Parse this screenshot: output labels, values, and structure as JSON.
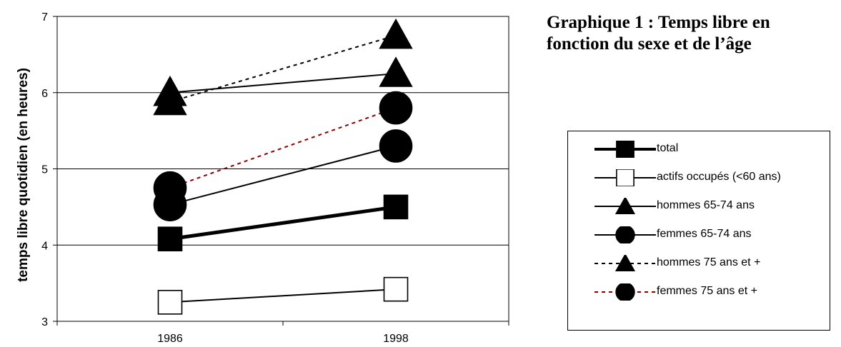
{
  "chart_data": {
    "type": "line",
    "title": "Graphique 1 : Temps libre en fonction du sexe et de l’âge",
    "xlabel": "",
    "ylabel": "temps libre quotidien (en heures)",
    "categories": [
      "1986",
      "1998"
    ],
    "ylim": [
      3,
      7
    ],
    "yticks": [
      "3",
      "4",
      "5",
      "6",
      "7"
    ],
    "grid": "horizontal",
    "legend_position": "right",
    "series": [
      {
        "name": "total",
        "values": [
          4.08,
          4.5
        ],
        "marker": "square-filled",
        "line": "solid-thick",
        "color": "#000000"
      },
      {
        "name": "actifs occupés (<60 ans)",
        "values": [
          3.25,
          3.42
        ],
        "marker": "square-open",
        "line": "solid",
        "color": "#000000"
      },
      {
        "name": "hommes 65-74 ans",
        "values": [
          6.0,
          6.25
        ],
        "marker": "triangle",
        "line": "solid",
        "color": "#000000"
      },
      {
        "name": "femmes 65-74 ans",
        "values": [
          4.53,
          5.3
        ],
        "marker": "circle",
        "line": "solid",
        "color": "#000000"
      },
      {
        "name": "hommes 75 ans et +",
        "values": [
          5.88,
          6.75
        ],
        "marker": "triangle",
        "line": "dashed",
        "color": "#000000"
      },
      {
        "name": "femmes 75 ans et +",
        "values": [
          4.75,
          5.8
        ],
        "marker": "circle",
        "line": "dashed",
        "color": "#8b0000"
      }
    ]
  }
}
